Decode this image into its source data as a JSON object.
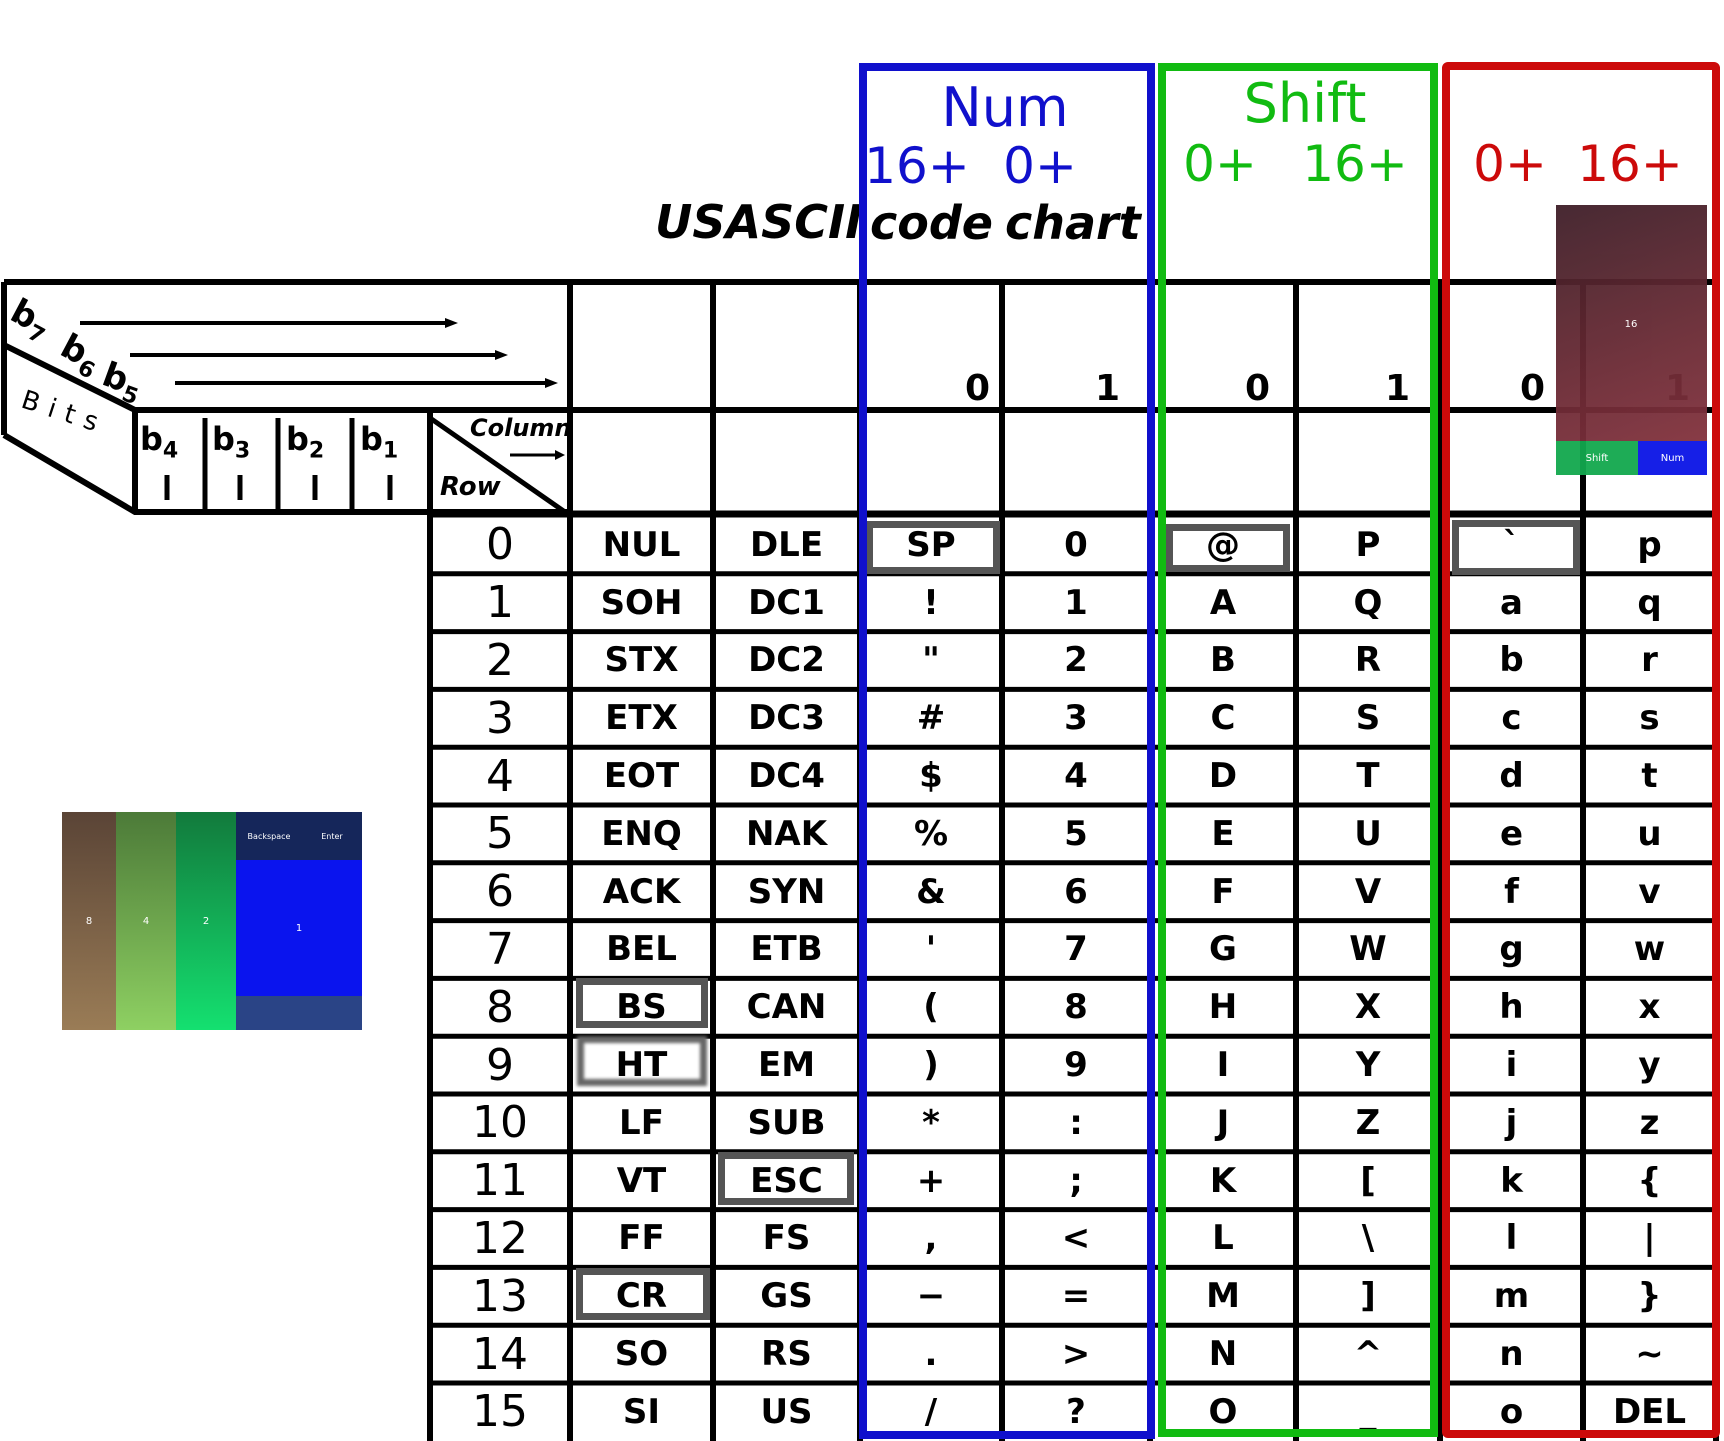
{
  "title": "USASCII",
  "modes": {
    "num": {
      "title": "Num",
      "sub_left": "16+",
      "sub_right": "0+",
      "color": "#1010cc"
    },
    "shift": {
      "title": "Shift",
      "sub_left": "0+",
      "sub_right": "16+",
      "color": "#11bb11"
    },
    "lower": {
      "sub_left": "0+",
      "sub_right": "16+",
      "color": "#cc0a0a"
    }
  },
  "col_labels": [
    "code",
    "chart"
  ],
  "bit_labels": {
    "b7": "b",
    "b7sub": "7",
    "b6": "b",
    "b6sub": "6",
    "b5": "b",
    "b5sub": "5",
    "bits": "Bits",
    "b4": "b",
    "b4sub": "4",
    "b3": "b",
    "b3sub": "3",
    "b2": "b",
    "b2sub": "2",
    "b1": "b",
    "b1sub": "1",
    "column": "Column",
    "row": "Row"
  },
  "col_bits": [
    "0",
    "1",
    "0",
    "1",
    "0",
    "1"
  ],
  "rows": [
    "0",
    "1",
    "2",
    "3",
    "4",
    "5",
    "6",
    "7",
    "8",
    "9",
    "10",
    "11",
    "12",
    "13",
    "14",
    "15"
  ],
  "columns": [
    [
      "NUL",
      "SOH",
      "STX",
      "ETX",
      "EOT",
      "ENQ",
      "ACK",
      "BEL",
      "BS",
      "HT",
      "LF",
      "VT",
      "FF",
      "CR",
      "SO",
      "SI"
    ],
    [
      "DLE",
      "DC1",
      "DC2",
      "DC3",
      "DC4",
      "NAK",
      "SYN",
      "ETB",
      "CAN",
      "EM",
      "SUB",
      "ESC",
      "FS",
      "GS",
      "RS",
      "US"
    ],
    [
      "SP",
      "!",
      "\"",
      "#",
      "$",
      "%",
      "&",
      "'",
      "(",
      ")",
      "*",
      "+",
      ",",
      "−",
      ".",
      "/"
    ],
    [
      "0",
      "1",
      "2",
      "3",
      "4",
      "5",
      "6",
      "7",
      "8",
      "9",
      ":",
      ";",
      "<",
      "=",
      ">",
      "?"
    ],
    [
      "@",
      "A",
      "B",
      "C",
      "D",
      "E",
      "F",
      "G",
      "H",
      "I",
      "J",
      "K",
      "L",
      "M",
      "N",
      "O"
    ],
    [
      "P",
      "Q",
      "R",
      "S",
      "T",
      "U",
      "V",
      "W",
      "X",
      "Y",
      "Z",
      "[",
      "\\",
      "]",
      "^",
      "_"
    ],
    [
      "`",
      "a",
      "b",
      "c",
      "d",
      "e",
      "f",
      "g",
      "h",
      "i",
      "j",
      "k",
      "l",
      "m",
      "n",
      "o"
    ],
    [
      "p",
      "q",
      "r",
      "s",
      "t",
      "u",
      "v",
      "w",
      "x",
      "y",
      "z",
      "{",
      "|",
      "}",
      "~",
      "DEL"
    ]
  ],
  "mini_right": {
    "label": "16",
    "shift": "Shift",
    "num": "Num"
  },
  "mini_left": {
    "cols": [
      "8",
      "4",
      "2"
    ],
    "backspace": "Backspace",
    "enter": "Enter",
    "one": "1"
  }
}
